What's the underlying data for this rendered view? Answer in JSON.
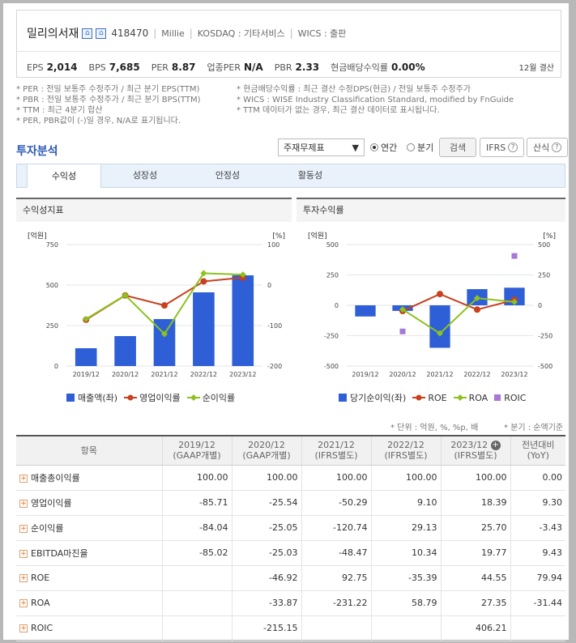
{
  "company": {
    "name": "밀리의서재",
    "code": "418470",
    "english": "Millie",
    "market": "KOSDAQ : 기타서비스",
    "wics": "WICS : 출판"
  },
  "metrics": [
    {
      "label": "EPS",
      "value": "2,014"
    },
    {
      "label": "BPS",
      "value": "7,685"
    },
    {
      "label": "PER",
      "value": "8.87"
    },
    {
      "label": "업종PER",
      "value": "N/A"
    },
    {
      "label": "PBR",
      "value": "2.33"
    },
    {
      "label": "현금배당수익률",
      "value": "0.00%"
    }
  ],
  "settlement": "12월 결산",
  "notes_left": [
    "* PER : 전일 보통주 수정주가 / 최근 분기 EPS(TTM)",
    "* PBR : 전일 보통주 수정주가 / 최근 분기 BPS(TTM)",
    "* TTM : 최근 4분기 합산",
    "* PER, PBR값이 (-)일 경우, N/A로 표기됩니다."
  ],
  "notes_right": [
    "* 현금배당수익률 : 최근 결산 수정DPS(현금) / 전일 보통주 수정주가",
    "* WICS : WISE Industry Classification Standard, modified by FnGuide",
    "* TTM 데이터가 없는 경우, 최근 결산 데이터로 표시됩니다."
  ],
  "analysis": {
    "title": "투자분석",
    "select_value": "주재무제표",
    "radio_annual": "연간",
    "radio_quarter": "분기",
    "search_btn": "검색",
    "ifrs_btn": "IFRS",
    "formula_btn": "산식"
  },
  "tabs": [
    "수익성",
    "성장성",
    "안정성",
    "활동성"
  ],
  "panel_left_title": "수익성지표",
  "panel_right_title": "투자수익률",
  "left_legend": [
    "매출액(좌)",
    "영업이익률",
    "순이익률"
  ],
  "right_legend": [
    "당기순이익(좌)",
    "ROE",
    "ROA",
    "ROIC"
  ],
  "unit_note": "* 단위 : 억원, %, %p, 배",
  "quarter_note": "* 분기 : 순액기준",
  "table": {
    "header_item": "항목",
    "columns": [
      [
        "2019/12",
        "(GAAP개별)"
      ],
      [
        "2020/12",
        "(GAAP개별)"
      ],
      [
        "2021/12",
        "(IFRS별도)"
      ],
      [
        "2022/12",
        "(IFRS별도)"
      ],
      [
        "2023/12",
        "(IFRS별도)"
      ],
      [
        "전년대비",
        "(YoY)"
      ]
    ],
    "rows": [
      {
        "label": "매출총이익률",
        "values": [
          "100.00",
          "100.00",
          "100.00",
          "100.00",
          "100.00",
          "0.00"
        ]
      },
      {
        "label": "영업이익률",
        "values": [
          "-85.71",
          "-25.54",
          "-50.29",
          "9.10",
          "18.39",
          "9.30"
        ]
      },
      {
        "label": "순이익률",
        "values": [
          "-84.04",
          "-25.05",
          "-120.74",
          "29.13",
          "25.70",
          "-3.43"
        ]
      },
      {
        "label": "EBITDA마진율",
        "values": [
          "-85.02",
          "-25.03",
          "-48.47",
          "10.34",
          "19.77",
          "9.43"
        ]
      },
      {
        "label": "ROE",
        "values": [
          "",
          "-46.92",
          "92.75",
          "-35.39",
          "44.55",
          "79.94"
        ]
      },
      {
        "label": "ROA",
        "values": [
          "",
          "-33.87",
          "-231.22",
          "58.79",
          "27.35",
          "-31.44"
        ]
      },
      {
        "label": "ROIC",
        "values": [
          "",
          "-215.15",
          "",
          "",
          "406.21",
          ""
        ]
      }
    ]
  },
  "chart_data": [
    {
      "type": "bar",
      "title": "수익성지표",
      "ylabel": "[억원]",
      "y2label": "[%]",
      "categories": [
        "2019/12",
        "2020/12",
        "2021/12",
        "2022/12",
        "2023/12"
      ],
      "ylim": [
        0,
        750
      ],
      "y2lim": [
        -200,
        100
      ],
      "yticks": [
        "750",
        "500",
        "250",
        "0"
      ],
      "y2ticks": [
        "100",
        "0",
        "-100",
        "-200"
      ],
      "series": [
        {
          "name": "매출액(좌)",
          "type": "bar",
          "axis": "left",
          "color": "#2e5fd6",
          "values": [
            110,
            185,
            290,
            455,
            560
          ]
        },
        {
          "name": "영업이익률",
          "type": "line",
          "axis": "right",
          "color": "#c8401e",
          "values": [
            -85.71,
            -25.54,
            -50.29,
            9.1,
            18.39
          ]
        },
        {
          "name": "순이익률",
          "type": "line",
          "axis": "right",
          "color": "#8cc21e",
          "values": [
            -84.04,
            -25.05,
            -120.74,
            29.13,
            25.7
          ]
        }
      ]
    },
    {
      "type": "bar",
      "title": "투자수익률",
      "ylabel": "[억원]",
      "y2label": "[%]",
      "categories": [
        "2019/12",
        "2020/12",
        "2021/12",
        "2022/12",
        "2023/12"
      ],
      "ylim": [
        -500,
        500
      ],
      "y2lim": [
        -500,
        500
      ],
      "yticks": [
        "500",
        "250",
        "0",
        "-250",
        "-500"
      ],
      "y2ticks": [
        "500",
        "250",
        "0",
        "-250",
        "-500"
      ],
      "series": [
        {
          "name": "당기순이익(좌)",
          "type": "bar",
          "axis": "left",
          "color": "#2e5fd6",
          "values": [
            -92,
            -46,
            -350,
            133,
            145
          ]
        },
        {
          "name": "ROE",
          "type": "line",
          "axis": "right",
          "color": "#c8401e",
          "values": [
            null,
            -46.92,
            92.75,
            -35.39,
            44.55
          ]
        },
        {
          "name": "ROA",
          "type": "line",
          "axis": "right",
          "color": "#8cc21e",
          "values": [
            null,
            -33.87,
            -231.22,
            58.79,
            27.35
          ]
        },
        {
          "name": "ROIC",
          "type": "scatter",
          "axis": "right",
          "color": "#a679d6",
          "values": [
            null,
            -215.15,
            null,
            null,
            406.21
          ]
        }
      ]
    }
  ]
}
